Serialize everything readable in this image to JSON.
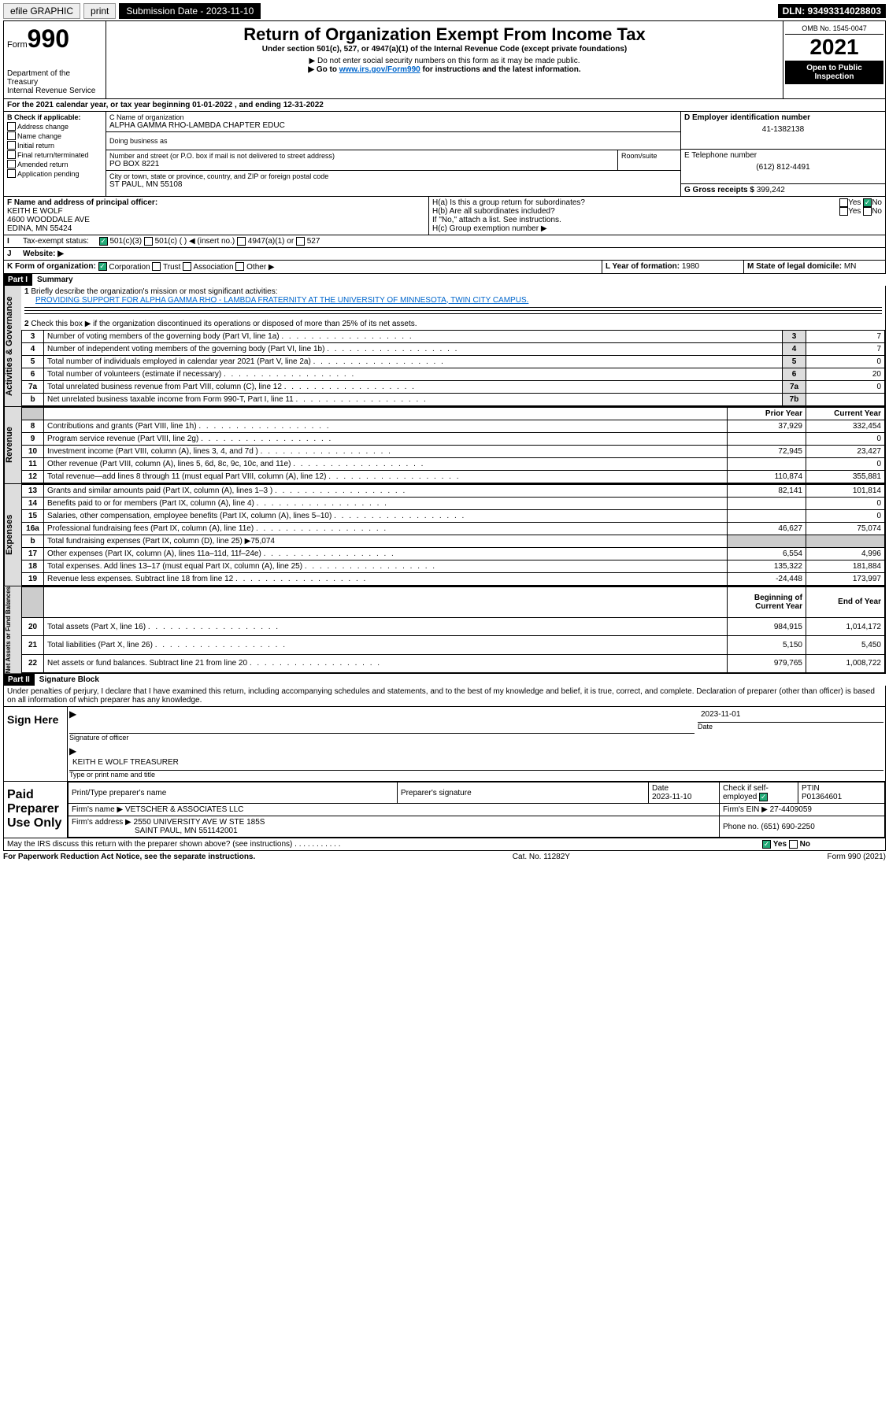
{
  "topbar": {
    "efile": "efile GRAPHIC",
    "print": "print",
    "subdate_lbl": "Submission Date - 2023-11-10",
    "dln": "DLN: 93493314028803"
  },
  "header": {
    "form_prefix": "Form",
    "form_num": "990",
    "dept": "Department of the Treasury",
    "irs": "Internal Revenue Service",
    "title": "Return of Organization Exempt From Income Tax",
    "sub1": "Under section 501(c), 527, or 4947(a)(1) of the Internal Revenue Code (except private foundations)",
    "sub2": "▶ Do not enter social security numbers on this form as it may be made public.",
    "sub3": "▶ Go to ",
    "sub3_link": "www.irs.gov/Form990",
    "sub3_tail": " for instructions and the latest information.",
    "omb": "OMB No. 1545-0047",
    "year": "2021",
    "openpub": "Open to Public Inspection"
  },
  "A": {
    "text": "For the 2021 calendar year, or tax year beginning 01-01-2022   , and ending 12-31-2022"
  },
  "B": {
    "lbl": "B Check if applicable:",
    "items": [
      "Address change",
      "Name change",
      "Initial return",
      "Final return/terminated",
      "Amended return",
      "Application pending"
    ]
  },
  "C": {
    "lbl": "C Name of organization",
    "name": "ALPHA GAMMA RHO-LAMBDA CHAPTER EDUC",
    "dba_lbl": "Doing business as",
    "addr_lbl": "Number and street (or P.O. box if mail is not delivered to street address)",
    "room_lbl": "Room/suite",
    "addr": "PO BOX 8221",
    "city_lbl": "City or town, state or province, country, and ZIP or foreign postal code",
    "city": "ST PAUL, MN  55108"
  },
  "D": {
    "lbl": "D Employer identification number",
    "val": "41-1382138"
  },
  "E": {
    "lbl": "E Telephone number",
    "val": "(612) 812-4491"
  },
  "G": {
    "lbl": "G Gross receipts $",
    "val": "399,242"
  },
  "F": {
    "lbl": "F  Name and address of principal officer:",
    "name": "KEITH E WOLF",
    "addr1": "4600 WOODDALE AVE",
    "addr2": "EDINA, MN  55424"
  },
  "H": {
    "a": "H(a)  Is this a group return for subordinates?",
    "b": "H(b)  Are all subordinates included?",
    "b_note": "If \"No,\" attach a list. See instructions.",
    "c": "H(c)  Group exemption number ▶",
    "yes": "Yes",
    "no": "No"
  },
  "I": {
    "lbl": "Tax-exempt status:",
    "opts": [
      "501(c)(3)",
      "501(c) (  ) ◀ (insert no.)",
      "4947(a)(1) or",
      "527"
    ]
  },
  "J": {
    "lbl": "Website: ▶"
  },
  "K": {
    "lbl": "K Form of organization:",
    "opts": [
      "Corporation",
      "Trust",
      "Association",
      "Other ▶"
    ]
  },
  "L": {
    "lbl": "L Year of formation:",
    "val": "1980"
  },
  "M": {
    "lbl": "M State of legal domicile:",
    "val": "MN"
  },
  "part1": {
    "hdr": "Part I",
    "sub": "Summary"
  },
  "summary": {
    "q1": "Briefly describe the organization's mission or most significant activities:",
    "mission": "PROVIDING SUPPORT FOR ALPHA GAMMA RHO - LAMBDA FRATERNITY AT THE UNIVERSITY OF MINNESOTA, TWIN CITY CAMPUS.",
    "q2": "Check this box ▶       if the organization discontinued its operations or disposed of more than 25% of its net assets.",
    "rows_gov": [
      {
        "n": "3",
        "t": "Number of voting members of the governing body (Part VI, line 1a)",
        "b": "3",
        "v": "7"
      },
      {
        "n": "4",
        "t": "Number of independent voting members of the governing body (Part VI, line 1b)",
        "b": "4",
        "v": "7"
      },
      {
        "n": "5",
        "t": "Total number of individuals employed in calendar year 2021 (Part V, line 2a)",
        "b": "5",
        "v": "0"
      },
      {
        "n": "6",
        "t": "Total number of volunteers (estimate if necessary)",
        "b": "6",
        "v": "20"
      },
      {
        "n": "7a",
        "t": "Total unrelated business revenue from Part VIII, column (C), line 12",
        "b": "7a",
        "v": "0"
      },
      {
        "n": "b",
        "t": "Net unrelated business taxable income from Form 990-T, Part I, line 11",
        "b": "7b",
        "v": ""
      }
    ],
    "col_prior": "Prior Year",
    "col_curr": "Current Year",
    "rev": [
      {
        "n": "8",
        "t": "Contributions and grants (Part VIII, line 1h)",
        "p": "37,929",
        "c": "332,454"
      },
      {
        "n": "9",
        "t": "Program service revenue (Part VIII, line 2g)",
        "p": "",
        "c": "0"
      },
      {
        "n": "10",
        "t": "Investment income (Part VIII, column (A), lines 3, 4, and 7d )",
        "p": "72,945",
        "c": "23,427"
      },
      {
        "n": "11",
        "t": "Other revenue (Part VIII, column (A), lines 5, 6d, 8c, 9c, 10c, and 11e)",
        "p": "",
        "c": "0"
      },
      {
        "n": "12",
        "t": "Total revenue—add lines 8 through 11 (must equal Part VIII, column (A), line 12)",
        "p": "110,874",
        "c": "355,881"
      }
    ],
    "exp": [
      {
        "n": "13",
        "t": "Grants and similar amounts paid (Part IX, column (A), lines 1–3 )",
        "p": "82,141",
        "c": "101,814"
      },
      {
        "n": "14",
        "t": "Benefits paid to or for members (Part IX, column (A), line 4)",
        "p": "",
        "c": "0"
      },
      {
        "n": "15",
        "t": "Salaries, other compensation, employee benefits (Part IX, column (A), lines 5–10)",
        "p": "",
        "c": "0"
      },
      {
        "n": "16a",
        "t": "Professional fundraising fees (Part IX, column (A), line 11e)",
        "p": "46,627",
        "c": "75,074"
      },
      {
        "n": "b",
        "t": "Total fundraising expenses (Part IX, column (D), line 25) ▶75,074",
        "p": "GREY",
        "c": "GREY"
      },
      {
        "n": "17",
        "t": "Other expenses (Part IX, column (A), lines 11a–11d, 11f–24e)",
        "p": "6,554",
        "c": "4,996"
      },
      {
        "n": "18",
        "t": "Total expenses. Add lines 13–17 (must equal Part IX, column (A), line 25)",
        "p": "135,322",
        "c": "181,884"
      },
      {
        "n": "19",
        "t": "Revenue less expenses. Subtract line 18 from line 12",
        "p": "-24,448",
        "c": "173,997"
      }
    ],
    "net_hdr_b": "Beginning of Current Year",
    "net_hdr_e": "End of Year",
    "net": [
      {
        "n": "20",
        "t": "Total assets (Part X, line 16)",
        "p": "984,915",
        "c": "1,014,172"
      },
      {
        "n": "21",
        "t": "Total liabilities (Part X, line 26)",
        "p": "5,150",
        "c": "5,450"
      },
      {
        "n": "22",
        "t": "Net assets or fund balances. Subtract line 21 from line 20",
        "p": "979,765",
        "c": "1,008,722"
      }
    ],
    "side": {
      "gov": "Activities & Governance",
      "rev": "Revenue",
      "exp": "Expenses",
      "net": "Net Assets or Fund Balances"
    }
  },
  "part2": {
    "hdr": "Part II",
    "sub": "Signature Block",
    "decl": "Under penalties of perjury, I declare that I have examined this return, including accompanying schedules and statements, and to the best of my knowledge and belief, it is true, correct, and complete. Declaration of preparer (other than officer) is based on all information of which preparer has any knowledge.",
    "sign_here": "Sign Here",
    "sig_officer": "Signature of officer",
    "date": "Date",
    "sig_date": "2023-11-01",
    "officer": "KEITH E WOLF TREASURER",
    "type_name": "Type or print name and title",
    "paid": "Paid Preparer Use Only",
    "pth": "Print/Type preparer's name",
    "psig": "Preparer's signature",
    "pdate": "Date",
    "pdate_v": "2023-11-10",
    "chkif": "Check         if self-employed",
    "ptin": "PTIN",
    "ptin_v": "P01364601",
    "firm_lbl": "Firm's name   ▶",
    "firm": "VETSCHER & ASSOCIATES LLC",
    "fein_lbl": "Firm's EIN ▶",
    "fein": "27-4409059",
    "faddr_lbl": "Firm's address ▶",
    "faddr": "2550 UNIVERSITY AVE W STE 185S",
    "faddr2": "SAINT PAUL, MN  551142001",
    "fphone_lbl": "Phone no.",
    "fphone": "(651) 690-2250",
    "may": "May the IRS discuss this return with the preparer shown above? (see instructions)"
  },
  "footer": {
    "pra": "For Paperwork Reduction Act Notice, see the separate instructions.",
    "cat": "Cat. No. 11282Y",
    "form": "Form 990 (2021)"
  }
}
